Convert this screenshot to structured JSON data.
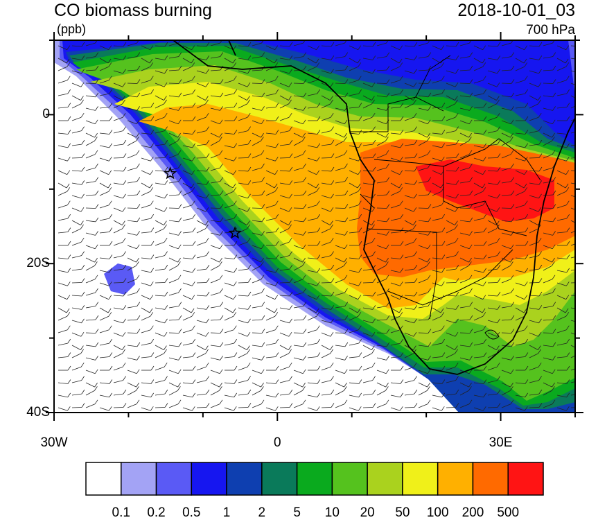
{
  "title": "CO biomass burning",
  "units": "(ppb)",
  "date": "2018-10-01_03",
  "level": "700 hPa",
  "map": {
    "lon_range": [
      -30,
      40
    ],
    "lat_range": [
      -40,
      10
    ],
    "y_ticks": [
      {
        "lat": 0,
        "label": "0"
      },
      {
        "lat": -20,
        "label": "20S"
      },
      {
        "lat": -40,
        "label": "40S"
      }
    ],
    "x_ticks": [
      {
        "lon": -30,
        "label": "30W"
      },
      {
        "lon": 0,
        "label": "0"
      },
      {
        "lon": 30,
        "label": "30E"
      }
    ],
    "markers": [
      {
        "name": "star-marker-ascension",
        "lon": -14.4,
        "lat": -7.9
      },
      {
        "name": "star-marker-st-helena",
        "lon": -5.7,
        "lat": -15.9
      }
    ]
  },
  "colorbar": {
    "colors": [
      "#ffffff",
      "#a3a3f5",
      "#5a5af5",
      "#1616f0",
      "#0e3fb0",
      "#0a7a5a",
      "#0aaa1e",
      "#55c21e",
      "#aad21e",
      "#f0f019",
      "#ffb000",
      "#ff6a00",
      "#ff1414"
    ],
    "labels": [
      "0.1",
      "0.2",
      "0.5",
      "1",
      "2",
      "5",
      "10",
      "20",
      "50",
      "100",
      "200",
      "500"
    ]
  }
}
